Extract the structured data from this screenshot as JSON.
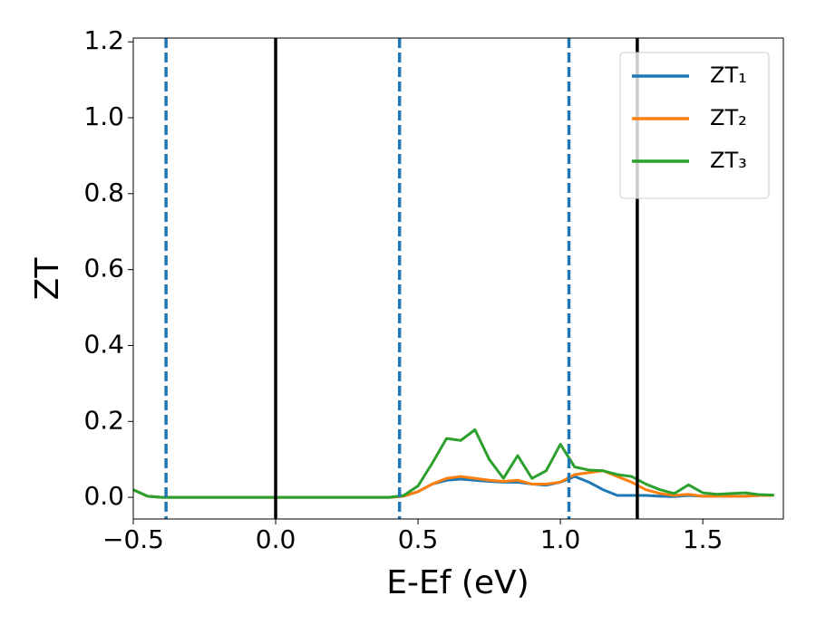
{
  "chart_data": {
    "type": "line",
    "x_label": "E-Ef (eV)",
    "y_label": "ZT",
    "x": [
      -0.5,
      -0.45,
      -0.4,
      -0.35,
      -0.3,
      -0.25,
      -0.2,
      -0.15,
      -0.1,
      -0.05,
      0,
      0.05,
      0.1,
      0.15,
      0.2,
      0.25,
      0.3,
      0.35,
      0.4,
      0.45,
      0.5,
      0.55,
      0.6,
      0.65,
      0.7,
      0.75,
      0.8,
      0.85,
      0.9,
      0.95,
      1.0,
      1.05,
      1.1,
      1.15,
      1.2,
      1.25,
      1.3,
      1.35,
      1.4,
      1.45,
      1.5,
      1.55,
      1.6,
      1.65,
      1.7,
      1.75
    ],
    "series": [
      {
        "name": "ZT₁",
        "color": "#1f77b4",
        "values": [
          0.02,
          0.003,
          0,
          0,
          0,
          0,
          0,
          0,
          0,
          0,
          0,
          0,
          0,
          0,
          0,
          0,
          0,
          0,
          0,
          0.003,
          0.015,
          0.035,
          0.045,
          0.048,
          0.045,
          0.042,
          0.04,
          0.04,
          0.035,
          0.032,
          0.04,
          0.055,
          0.04,
          0.02,
          0.005,
          0.005,
          0.005,
          0.003,
          0.002,
          0.005,
          0.003,
          0.003,
          0.003,
          0.003,
          0.005,
          0.005
        ]
      },
      {
        "name": "ZT₂",
        "color": "#ff7f0e",
        "values": [
          0.02,
          0.003,
          0,
          0,
          0,
          0,
          0,
          0,
          0,
          0,
          0,
          0,
          0,
          0,
          0,
          0,
          0,
          0,
          0,
          0.003,
          0.015,
          0.035,
          0.05,
          0.055,
          0.05,
          0.045,
          0.042,
          0.045,
          0.035,
          0.035,
          0.04,
          0.06,
          0.065,
          0.07,
          0.055,
          0.04,
          0.02,
          0.01,
          0.005,
          0.008,
          0.003,
          0.003,
          0.003,
          0.003,
          0.005,
          0.005
        ]
      },
      {
        "name": "ZT₃",
        "color": "#2ca02c",
        "values": [
          0.02,
          0.003,
          0,
          0,
          0,
          0,
          0,
          0,
          0,
          0,
          0,
          0,
          0,
          0,
          0,
          0,
          0,
          0,
          0,
          0.005,
          0.03,
          0.09,
          0.155,
          0.15,
          0.178,
          0.1,
          0.05,
          0.11,
          0.05,
          0.07,
          0.14,
          0.08,
          0.072,
          0.07,
          0.06,
          0.055,
          0.035,
          0.02,
          0.01,
          0.033,
          0.012,
          0.008,
          0.01,
          0.012,
          0.007,
          0.006
        ]
      }
    ],
    "vlines": [
      {
        "x": -0.385,
        "color": "#1f77b4",
        "style": "dashed"
      },
      {
        "x": 0,
        "color": "#000000",
        "style": "solid"
      },
      {
        "x": 0.435,
        "color": "#1f77b4",
        "style": "dashed"
      },
      {
        "x": 1.03,
        "color": "#1f77b4",
        "style": "dashed"
      },
      {
        "x": 1.27,
        "color": "#000000",
        "style": "solid"
      }
    ],
    "xlim": [
      -0.5,
      1.783
    ],
    "ylim": [
      -0.057,
      1.21
    ],
    "xticks": [
      {
        "value": -0.5,
        "label": "−0.5"
      },
      {
        "value": 0,
        "label": "0.0"
      },
      0.5,
      {
        "value": 1,
        "label": "1.0"
      },
      1.5
    ],
    "yticks": [
      {
        "value": 0,
        "label": "0.0"
      },
      0.2,
      0.4,
      0.6,
      0.8,
      {
        "value": 1,
        "label": "1.0"
      },
      1.2
    ],
    "grid": false,
    "legend": "upper right"
  }
}
